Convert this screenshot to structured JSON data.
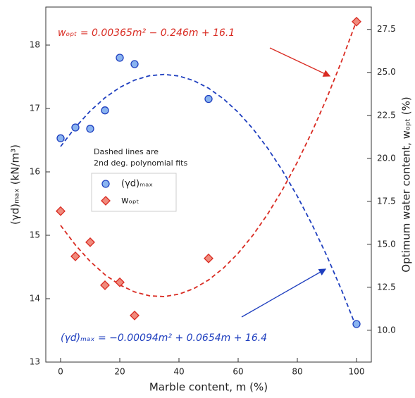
{
  "chart_data": {
    "type": "scatter",
    "xlabel": "Marble content, m (%)",
    "ylabel": "(γd)ₘₐₓ  (kN/m³)",
    "y2label": "Optimum water content, wₒₚₜ (%)",
    "xlim": [
      -5,
      105
    ],
    "xticks": [
      0,
      20,
      40,
      60,
      80,
      100
    ],
    "ylim": [
      13,
      18.6
    ],
    "yticks": [
      13,
      14,
      15,
      16,
      17,
      18
    ],
    "y2lim": [
      8.15,
      28.8
    ],
    "y2ticks": [
      {
        "value": 10,
        "label": "10.0"
      },
      12.5,
      {
        "value": 15,
        "label": "15.0"
      },
      17.5,
      {
        "value": 20,
        "label": "20.0"
      },
      22.5,
      {
        "value": 25,
        "label": "25.0"
      },
      27.5
    ],
    "x": [
      0,
      5,
      10,
      15,
      20,
      25,
      50,
      100
    ],
    "series": [
      {
        "name": "(γd)ₘₐₓ",
        "color": "#1f3fbf",
        "values": [
          16.53,
          16.7,
          16.68,
          16.97,
          17.8,
          17.7,
          17.15,
          13.6
        ]
      },
      {
        "name": "wₒₚₜ",
        "color": "#d92b22",
        "axis": "y2",
        "values": [
          16.93,
          14.3,
          15.12,
          12.62,
          12.79,
          10.86,
          14.18,
          27.95
        ]
      }
    ],
    "fits": {
      "x": [
        0,
        5,
        10,
        15,
        20,
        25,
        30,
        35,
        40,
        45,
        50,
        55,
        60,
        65,
        70,
        75,
        80,
        85,
        90,
        95,
        100
      ],
      "series": [
        {
          "color": "#1f3fbf",
          "values": [
            16.4,
            16.7035,
            16.96,
            17.1695,
            17.332,
            17.4475,
            17.516,
            17.5375,
            17.512,
            17.4395,
            17.32,
            17.1535,
            16.94,
            16.6795,
            16.372,
            16.0175,
            15.616,
            15.1675,
            14.672,
            14.1295,
            13.54
          ]
        },
        {
          "color": "#d92b22",
          "axis": "y2",
          "values": [
            16.1,
            14.96125,
            14.005,
            13.23125,
            12.64,
            12.23125,
            12.005,
            11.96125,
            12.1,
            12.42125,
            12.925,
            13.61125,
            14.48,
            15.53125,
            16.765,
            18.18125,
            19.78,
            21.56125,
            23.525,
            25.67125,
            28.0
          ]
        }
      ]
    },
    "note": [
      "Dashed lines are",
      "2nd deg. polynomial fits"
    ],
    "annotations": [
      "wₒₚₜ = 0.00365m² − 0.246m + 16.1",
      "(γd)ₘₐₓ = −0.00094m² + 0.0654m + 16.4"
    ]
  }
}
